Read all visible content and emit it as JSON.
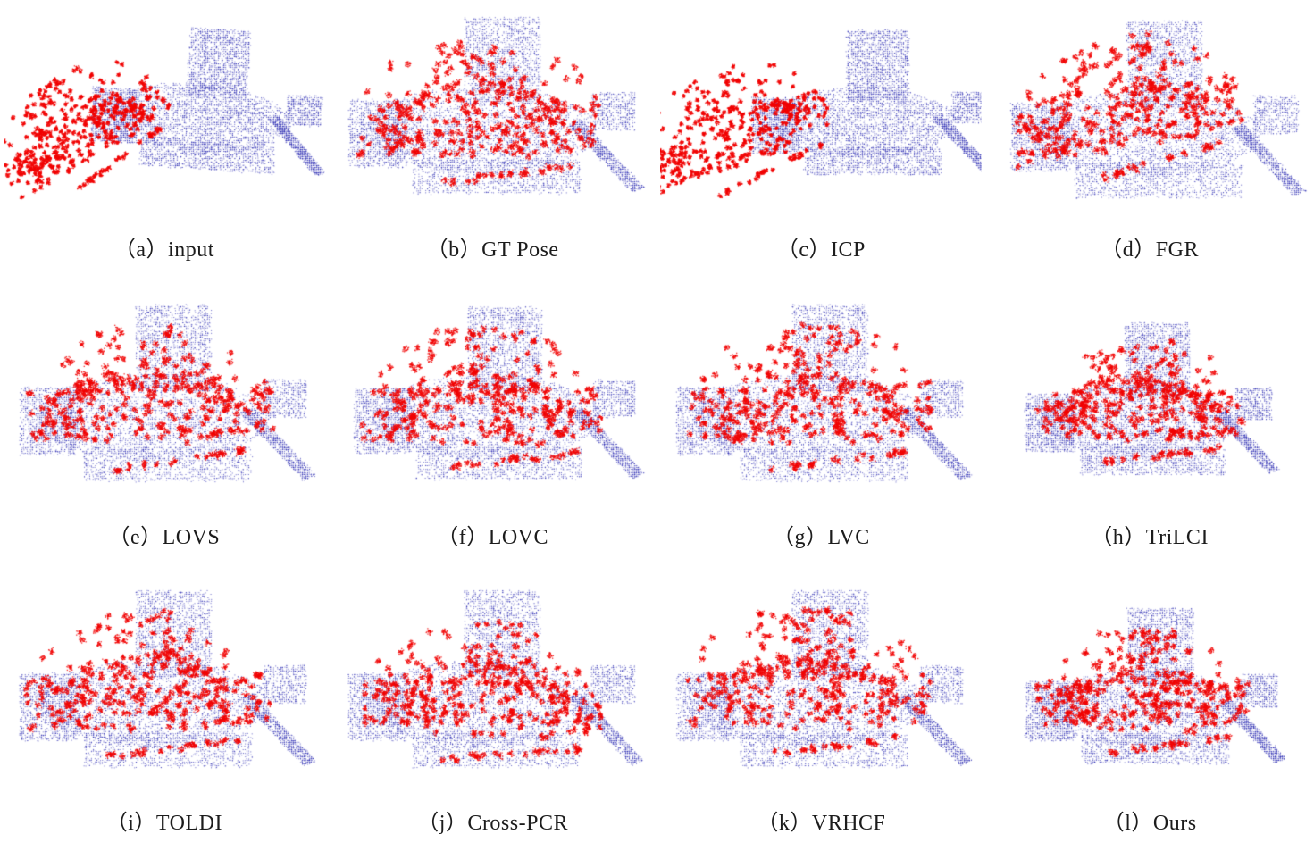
{
  "figure": {
    "description": "Qualitative comparison of point cloud registration results on a scene pair; red = source cloud, blue = target cloud",
    "colors": {
      "source_red": "#f10000",
      "target_blue": "#3232b4",
      "background": "#ffffff",
      "caption_text": "#1c1c1c"
    },
    "panels": [
      {
        "id": "a",
        "label": "（a）input",
        "method": "input",
        "registration": "unaligned",
        "seed": 11,
        "blue": {
          "tx": 0.15,
          "ty": -0.05,
          "rot": 4,
          "scale": 0.8
        },
        "red": {
          "tx": -0.26,
          "ty": 0.04,
          "rot": -33,
          "scale": 0.74,
          "dense": true
        }
      },
      {
        "id": "b",
        "label": "（b）GT Pose",
        "method": "GT Pose",
        "registration": "ground-truth",
        "seed": 2,
        "blue": {
          "tx": 0.0,
          "ty": 0.0,
          "rot": 0,
          "scale": 1.0
        },
        "red": {
          "tx": -0.01,
          "ty": -0.01,
          "rot": -3,
          "scale": 1.0
        }
      },
      {
        "id": "c",
        "label": "（c）ICP",
        "method": "ICP",
        "registration": "unaligned",
        "seed": 33,
        "blue": {
          "tx": 0.17,
          "ty": -0.03,
          "rot": 0,
          "scale": 0.82
        },
        "red": {
          "tx": -0.27,
          "ty": 0.06,
          "rot": -22,
          "scale": 0.8,
          "dense": true
        }
      },
      {
        "id": "d",
        "label": "（d）FGR",
        "method": "FGR",
        "registration": "partially-aligned",
        "seed": 44,
        "blue": {
          "tx": 0.02,
          "ty": 0.02,
          "rot": 0,
          "scale": 1.0
        },
        "red": {
          "tx": -0.05,
          "ty": -0.05,
          "rot": -12,
          "scale": 0.95
        }
      },
      {
        "id": "e",
        "label": "（e）LOVS",
        "method": "LOVS",
        "registration": "aligned",
        "seed": 5,
        "blue": {
          "tx": 0.0,
          "ty": 0.0,
          "rot": 0,
          "scale": 1.0
        },
        "red": {
          "tx": -0.01,
          "ty": -0.02,
          "rot": -4,
          "scale": 1.0
        }
      },
      {
        "id": "f",
        "label": "（f）LOVC",
        "method": "LOVC",
        "registration": "aligned",
        "seed": 6,
        "blue": {
          "tx": 0.01,
          "ty": 0.0,
          "rot": 0,
          "scale": 0.98
        },
        "red": {
          "tx": 0.0,
          "ty": -0.01,
          "rot": -2,
          "scale": 0.97
        }
      },
      {
        "id": "g",
        "label": "（g）LVC",
        "method": "LVC",
        "registration": "aligned",
        "seed": 7,
        "blue": {
          "tx": 0.0,
          "ty": 0.0,
          "rot": 0,
          "scale": 1.0
        },
        "red": {
          "tx": 0.01,
          "ty": -0.02,
          "rot": -3,
          "scale": 1.0
        }
      },
      {
        "id": "h",
        "label": "（h）TriLCI",
        "method": "TriLCI",
        "registration": "aligned",
        "seed": 8,
        "blue": {
          "tx": 0.0,
          "ty": 0.02,
          "rot": 0,
          "scale": 0.86
        },
        "red": {
          "tx": 0.0,
          "ty": 0.0,
          "rot": -2,
          "scale": 0.84
        }
      },
      {
        "id": "i",
        "label": "（i）TOLDI",
        "method": "TOLDI",
        "registration": "aligned",
        "seed": 9,
        "blue": {
          "tx": 0.0,
          "ty": 0.0,
          "rot": 0,
          "scale": 1.0
        },
        "red": {
          "tx": -0.01,
          "ty": -0.01,
          "rot": -3,
          "scale": 1.0
        }
      },
      {
        "id": "j",
        "label": "（j）Cross-PCR",
        "method": "Cross-PCR",
        "registration": "aligned",
        "seed": 10,
        "blue": {
          "tx": 0.0,
          "ty": 0.0,
          "rot": 0,
          "scale": 1.0
        },
        "red": {
          "tx": 0.01,
          "ty": 0.03,
          "rot": 0,
          "scale": 0.97
        }
      },
      {
        "id": "k",
        "label": "（k）VRHCF",
        "method": "VRHCF",
        "registration": "aligned",
        "seed": 12,
        "blue": {
          "tx": 0.0,
          "ty": 0.0,
          "rot": 0,
          "scale": 1.0
        },
        "red": {
          "tx": 0.0,
          "ty": -0.02,
          "rot": -2,
          "scale": 1.0,
          "topw": 0.22
        }
      },
      {
        "id": "l",
        "label": "（l）Ours",
        "method": "Ours",
        "registration": "aligned",
        "seed": 13,
        "blue": {
          "tx": 0.01,
          "ty": 0.03,
          "rot": 0,
          "scale": 0.88
        },
        "red": {
          "tx": 0.01,
          "ty": 0.02,
          "rot": -2,
          "scale": 0.86
        }
      }
    ]
  }
}
